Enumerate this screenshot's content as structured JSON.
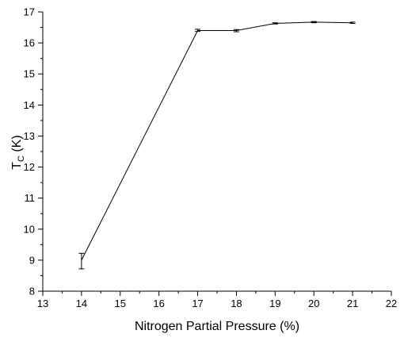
{
  "chart_data": {
    "type": "line",
    "title": "",
    "xlabel": "Nitrogen Partial Pressure (%)",
    "ylabel_main": "T",
    "ylabel_sub": "C",
    "ylabel_unit": " (K)",
    "xlim": [
      13,
      22
    ],
    "ylim": [
      8,
      17
    ],
    "xticks": [
      13,
      14,
      15,
      16,
      17,
      18,
      19,
      20,
      21,
      22
    ],
    "yticks": [
      8,
      9,
      10,
      11,
      12,
      13,
      14,
      15,
      16,
      17
    ],
    "grid": false,
    "line_color": "#000000",
    "series": [
      {
        "x": [
          14,
          17,
          18,
          19,
          20,
          21
        ],
        "y": [
          9.0,
          16.4,
          16.4,
          16.63,
          16.67,
          16.65
        ],
        "error_low": [
          8.72,
          16.37,
          16.36,
          16.61,
          16.65,
          16.63
        ],
        "error_high": [
          9.22,
          16.44,
          16.43,
          16.65,
          16.69,
          16.67
        ]
      }
    ]
  }
}
